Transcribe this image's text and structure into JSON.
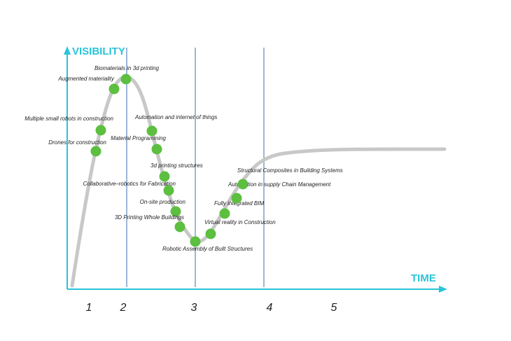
{
  "axes": {
    "y_label": "VISIBILITY",
    "x_label": "TIME"
  },
  "phases": [
    "1",
    "2",
    "3",
    "4",
    "5"
  ],
  "nodes": [
    {
      "label": "Drones for construction"
    },
    {
      "label": "Multiple small robots in construction"
    },
    {
      "label": "Augmented materiality"
    },
    {
      "label": "Biomaterials in 3d printing"
    },
    {
      "label": "Automation and internet of things"
    },
    {
      "label": "Material Programming"
    },
    {
      "label": "3d printing structures"
    },
    {
      "label": "Collaborative–robotics for Fabrication"
    },
    {
      "label": "On-site production"
    },
    {
      "label": "3D Printing Whole Buildings"
    },
    {
      "label": "Robotic Assembly of Built Structures"
    },
    {
      "label": "Virtual reality in Construction"
    },
    {
      "label": "Fully integrated BIM"
    },
    {
      "label": "Automation in supply Chain Management"
    },
    {
      "label": "Structural Composites in Building Systems"
    }
  ]
}
